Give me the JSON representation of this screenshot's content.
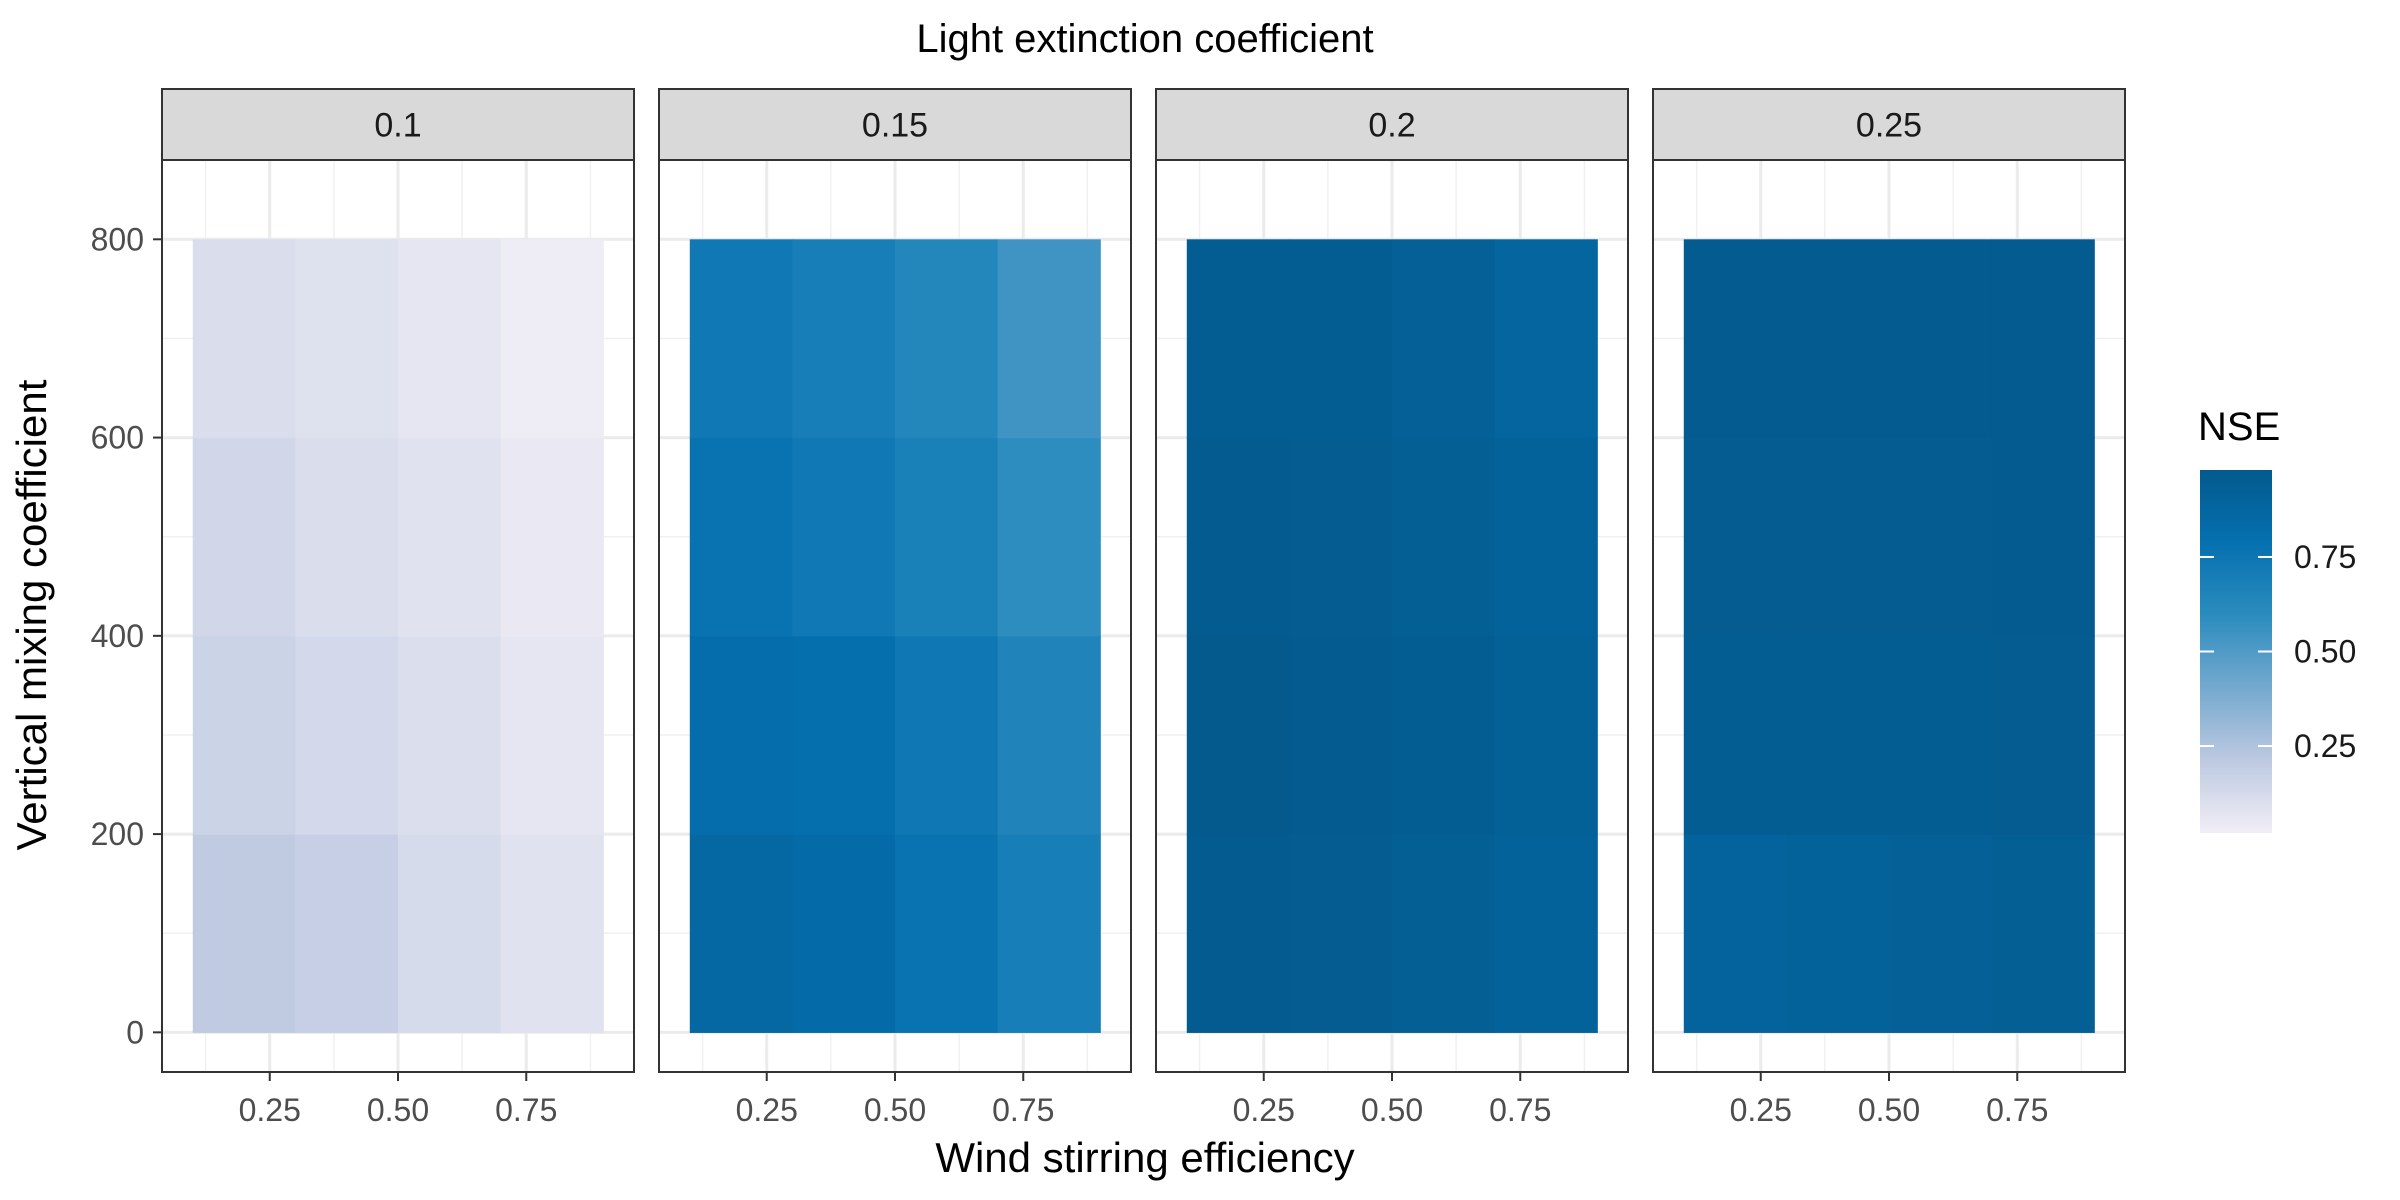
{
  "chart_data": {
    "type": "heatmap",
    "title": "Light extinction coefficient",
    "xlabel": "Wind stirring efficiency",
    "ylabel": "Vertical mixing coefficient",
    "x_ticks": [
      "0.25",
      "0.50",
      "0.75"
    ],
    "x_tick_values": [
      0.25,
      0.5,
      0.75
    ],
    "y_ticks": [
      "0",
      "200",
      "400",
      "600",
      "800"
    ],
    "y_tick_values": [
      0,
      200,
      400,
      600,
      800
    ],
    "xlim": [
      0.04,
      0.96
    ],
    "ylim": [
      -40,
      880
    ],
    "x_centers": [
      0.2,
      0.4,
      0.6,
      0.8
    ],
    "x_cell_width": 0.2,
    "y_centers": [
      100,
      300,
      500,
      700
    ],
    "y_cell_height": 200,
    "grid": true,
    "facets": [
      {
        "label": "0.1",
        "nse": [
          [
            0.2,
            0.18,
            0.12,
            0.08
          ],
          [
            0.16,
            0.13,
            0.1,
            0.06
          ],
          [
            0.14,
            0.11,
            0.08,
            0.05
          ],
          [
            0.11,
            0.09,
            0.06,
            0.03
          ]
        ]
      },
      {
        "label": "0.15",
        "nse": [
          [
            0.86,
            0.83,
            0.77,
            0.69
          ],
          [
            0.81,
            0.8,
            0.74,
            0.65
          ],
          [
            0.77,
            0.73,
            0.68,
            0.59
          ],
          [
            0.73,
            0.69,
            0.63,
            0.54
          ]
        ]
      },
      {
        "label": "0.2",
        "nse": [
          [
            0.97,
            0.96,
            0.94,
            0.91
          ],
          [
            0.98,
            0.97,
            0.95,
            0.92
          ],
          [
            0.97,
            0.96,
            0.94,
            0.91
          ],
          [
            0.95,
            0.95,
            0.93,
            0.88
          ]
        ]
      },
      {
        "label": "0.25",
        "nse": [
          [
            0.9,
            0.91,
            0.93,
            0.94
          ],
          [
            0.95,
            0.95,
            0.95,
            0.96
          ],
          [
            0.96,
            0.96,
            0.96,
            0.97
          ],
          [
            0.97,
            0.97,
            0.97,
            0.97
          ]
        ]
      }
    ],
    "legend": {
      "title": "NSE",
      "ticks": [
        "0.25",
        "0.50",
        "0.75"
      ],
      "tick_values": [
        0.25,
        0.5,
        0.75
      ],
      "range": [
        0.02,
        0.98
      ],
      "colors": [
        "#f1eef6",
        "#bdc9e1",
        "#74a9cf",
        "#2b8cbe",
        "#0570b0",
        "#045a8d"
      ],
      "placement": "right"
    }
  }
}
